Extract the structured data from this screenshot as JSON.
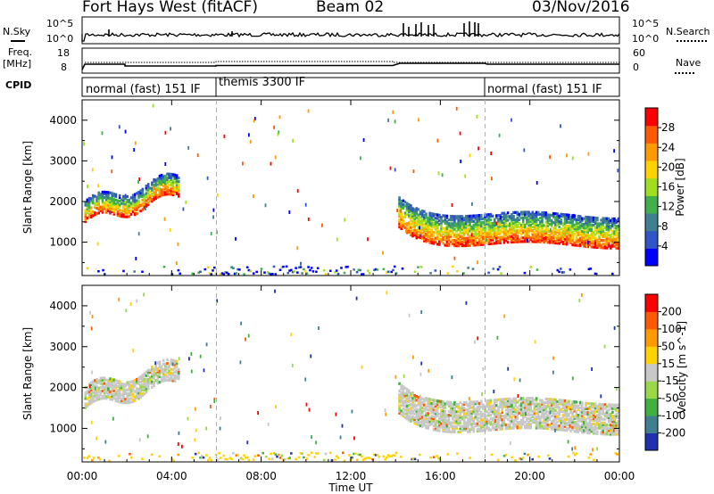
{
  "header": {
    "title": "Fort Hays West (fitACF)",
    "beam": "Beam 02",
    "date": "03/Nov/2016"
  },
  "side_labels": {
    "nsky": "N.Sky",
    "freq": "Freq.",
    "freq_unit": "[MHz]",
    "cpid": "CPID",
    "nsearch": "N.Search",
    "nave": "Nave"
  },
  "top_axes": {
    "noise_ticks": [
      "10^5",
      "10^0"
    ],
    "freq_ticks": [
      "18",
      "8"
    ],
    "nave_ticks": [
      "60",
      "0"
    ]
  },
  "cpid_segments": [
    {
      "label": "normal (fast) 151 IF",
      "start_hour": 0,
      "end_hour": 6
    },
    {
      "label": "themis 3300 IF",
      "start_hour": 6,
      "end_hour": 18
    },
    {
      "label": "normal (fast) 151 IF",
      "start_hour": 18,
      "end_hour": 24
    }
  ],
  "time_axis": {
    "label": "Time UT",
    "ticks": [
      "00:00",
      "04:00",
      "08:00",
      "12:00",
      "16:00",
      "20:00",
      "00:00"
    ],
    "range_hours": [
      0,
      24
    ]
  },
  "range_axis": {
    "label": "Slant Range [km]",
    "ticks": [
      "4000",
      "3000",
      "2000",
      "1000"
    ],
    "range_km": [
      180,
      4500
    ]
  },
  "chart_data": [
    {
      "type": "heatmap",
      "panel": "power",
      "xlabel": "Time UT",
      "ylabel": "Slant Range [km]",
      "colorbar_label": "Power [dB]",
      "colorbar_ticks": [
        "28",
        "24",
        "20",
        "16",
        "12",
        "8",
        "4"
      ],
      "colorbar_colors": [
        "#0000ff",
        "#2f55c8",
        "#3f7f8f",
        "#3fb04a",
        "#9fdf1f",
        "#ffd200",
        "#ff9a00",
        "#ff5a00",
        "#ff0000"
      ],
      "features": [
        {
          "name": "early echo band",
          "hours": [
            0,
            4.5
          ],
          "range_km": [
            1600,
            2600
          ]
        },
        {
          "name": "main echo band",
          "hours": [
            14,
            24
          ],
          "range_km": [
            1000,
            2000
          ]
        },
        {
          "name": "near-range clutter",
          "hours": [
            0,
            24
          ],
          "range_km": [
            180,
            400
          ]
        }
      ]
    },
    {
      "type": "heatmap",
      "panel": "velocity",
      "xlabel": "Time UT",
      "ylabel": "Slant Range [km]",
      "colorbar_label": "Velocity [m s^-1]",
      "colorbar_ticks": [
        "200",
        "100",
        "50",
        "15",
        "-15",
        "-50",
        "-100",
        "-200"
      ],
      "colorbar_colors": [
        "#2030b0",
        "#3f7f8f",
        "#40b040",
        "#9ad84a",
        "#c8c8c8",
        "#ffd200",
        "#ff9a00",
        "#ff5a00",
        "#ff0000"
      ],
      "features": [
        {
          "name": "early echo band",
          "hours": [
            0,
            4.5
          ],
          "range_km": [
            1600,
            2600
          ]
        },
        {
          "name": "main echo band",
          "hours": [
            14,
            24
          ],
          "range_km": [
            1000,
            2000
          ]
        },
        {
          "name": "near-range clutter",
          "hours": [
            0,
            24
          ],
          "range_km": [
            180,
            400
          ]
        }
      ]
    }
  ]
}
